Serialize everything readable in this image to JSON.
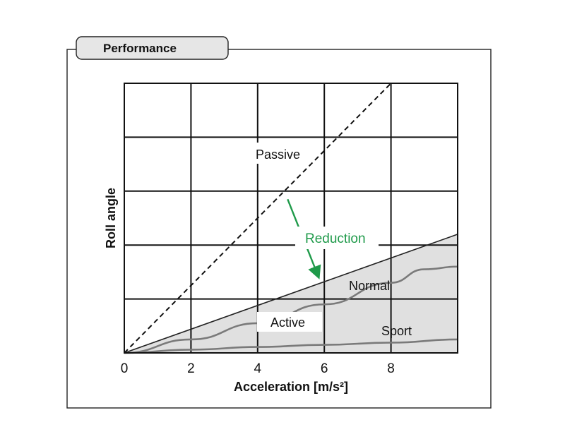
{
  "panel": {
    "title": "Performance"
  },
  "chart_data": {
    "type": "line",
    "title": "Performance",
    "xlabel": "Acceleration [m/s²]",
    "ylabel": "Roll angle",
    "xlim": [
      0,
      10
    ],
    "ylim": [
      0,
      5
    ],
    "x_ticks": [
      "0",
      "2",
      "4",
      "6",
      "8"
    ],
    "x_tick_values": [
      0,
      2,
      4,
      6,
      8
    ],
    "grid": true,
    "series": [
      {
        "name": "Passive",
        "style": "dashed",
        "points": [
          [
            0,
            0
          ],
          [
            8,
            5
          ]
        ]
      },
      {
        "name": "Active",
        "style": "boundary",
        "points": [
          [
            0,
            0
          ],
          [
            10,
            2.2
          ]
        ]
      },
      {
        "name": "Normal",
        "style": "solid-gray",
        "points": [
          [
            0,
            0
          ],
          [
            2,
            0.25
          ],
          [
            4,
            0.55
          ],
          [
            6,
            0.9
          ],
          [
            8,
            1.3
          ],
          [
            9,
            1.55
          ],
          [
            10,
            1.6
          ]
        ]
      },
      {
        "name": "Sport",
        "style": "solid-gray",
        "points": [
          [
            0,
            0
          ],
          [
            2,
            0.06
          ],
          [
            4,
            0.11
          ],
          [
            6,
            0.15
          ],
          [
            8,
            0.19
          ],
          [
            10,
            0.25
          ]
        ]
      }
    ],
    "shaded_region": {
      "label": "Active",
      "between": [
        "Active",
        "x-axis"
      ]
    },
    "annotations": [
      {
        "text": "Passive",
        "at": [
          4.2,
          3.7
        ]
      },
      {
        "text": "Reduction",
        "at": [
          5.4,
          2.1
        ],
        "color": "#1f9a4a"
      },
      {
        "text": "Normal",
        "at": [
          6.8,
          1.25
        ]
      },
      {
        "text": "Active",
        "at": [
          4.3,
          0.55
        ]
      },
      {
        "text": "Sport",
        "at": [
          7.8,
          0.35
        ]
      }
    ],
    "arrow": {
      "label": "Reduction",
      "from": [
        4.9,
        2.85
      ],
      "to": [
        5.8,
        1.45
      ],
      "color": "#1f9a4a"
    }
  }
}
